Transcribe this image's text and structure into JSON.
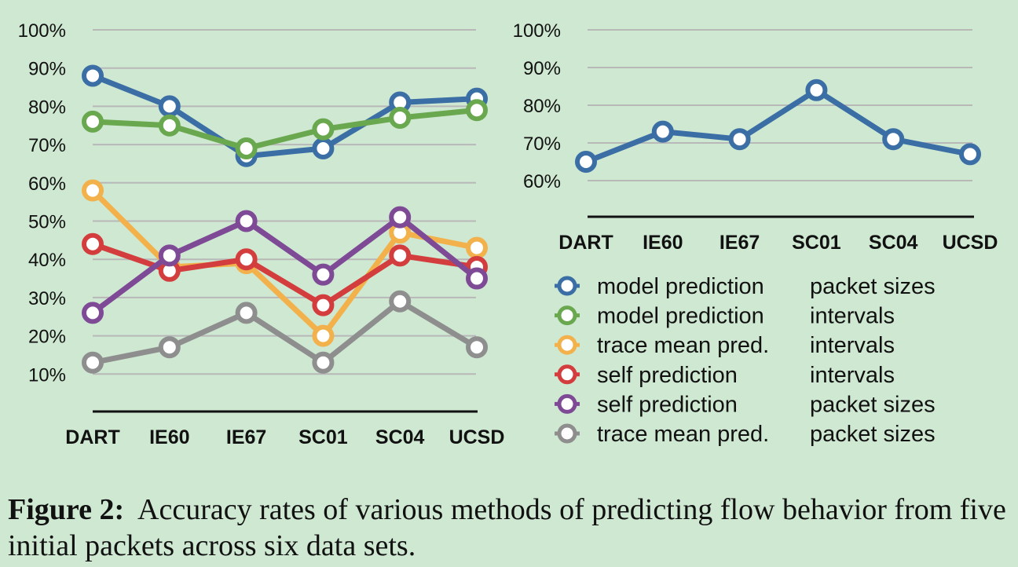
{
  "chart_data": [
    {
      "type": "line",
      "categories": [
        "DART",
        "IE60",
        "IE67",
        "SC01",
        "SC04",
        "UCSD"
      ],
      "y_tick_labels": [
        "10%",
        "20%",
        "30%",
        "40%",
        "50%",
        "60%",
        "70%",
        "80%",
        "90%",
        "100%"
      ],
      "ylim": [
        0,
        100
      ],
      "grid": true,
      "series": [
        {
          "name": "model prediction packet sizes",
          "color": "#3a6ea5",
          "values": [
            88,
            80,
            67,
            69,
            81,
            82
          ]
        },
        {
          "name": "model prediction intervals",
          "color": "#6aa84f",
          "values": [
            76,
            75,
            69,
            74,
            77,
            79
          ]
        },
        {
          "name": "trace mean pred. intervals",
          "color": "#f2b14b",
          "values": [
            58,
            38,
            39,
            20,
            47,
            43
          ]
        },
        {
          "name": "self prediction intervals",
          "color": "#d33d3d",
          "values": [
            44,
            37,
            40,
            28,
            41,
            38
          ]
        },
        {
          "name": "self prediction packet sizes",
          "color": "#7e4a96",
          "values": [
            26,
            41,
            50,
            36,
            51,
            35
          ]
        },
        {
          "name": "trace mean pred. packet sizes",
          "color": "#8e8e8e",
          "values": [
            13,
            17,
            26,
            13,
            29,
            17
          ]
        }
      ]
    },
    {
      "type": "line",
      "categories": [
        "DART",
        "IE60",
        "IE67",
        "SC01",
        "SC04",
        "UCSD"
      ],
      "y_tick_labels": [
        "60%",
        "70%",
        "80%",
        "90%",
        "100%"
      ],
      "ylim": [
        50,
        100
      ],
      "grid": true,
      "series": [
        {
          "name": "model prediction packet sizes",
          "color": "#3a6ea5",
          "values": [
            65,
            73,
            71,
            84,
            71,
            67
          ]
        }
      ]
    }
  ],
  "legend": {
    "placement": "bottom-right",
    "items": [
      {
        "method": "model prediction",
        "feature": "packet sizes",
        "color": "#3a6ea5"
      },
      {
        "method": "model prediction",
        "feature": "intervals",
        "color": "#6aa84f"
      },
      {
        "method": "trace mean pred.",
        "feature": "intervals",
        "color": "#f2b14b"
      },
      {
        "method": "self prediction",
        "feature": "intervals",
        "color": "#d33d3d"
      },
      {
        "method": "self prediction",
        "feature": "packet sizes",
        "color": "#7e4a96"
      },
      {
        "method": "trace mean pred.",
        "feature": "packet sizes",
        "color": "#8e8e8e"
      }
    ]
  },
  "caption": {
    "label": "Figure 2:",
    "text": "Accuracy rates of various methods of predicting flow behavior from five initial packets across six data sets."
  }
}
